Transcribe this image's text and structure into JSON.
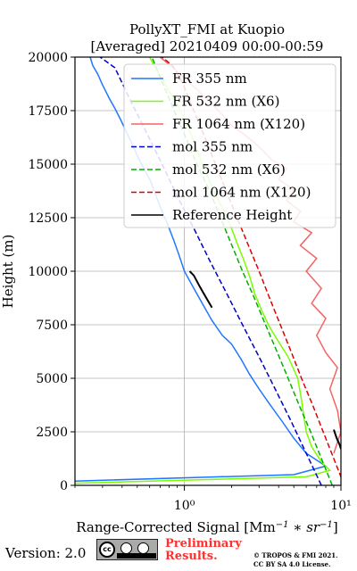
{
  "chart_data": {
    "type": "line",
    "title_line1": "PollyXT_FMI at Kuopio",
    "title_line2": "[Averaged] 20210409 00:00-00:59",
    "xlabel": "Range-Corrected Signal [Mm",
    "xlabel_full": "Range-Corrected Signal [Mm^-1 * sr^-1]",
    "ylabel": "Height (m)",
    "x_scale": "log",
    "xlim": [
      0.2,
      10
    ],
    "ylim": [
      0,
      20000
    ],
    "x_ticks": [
      1,
      10
    ],
    "x_tick_labels": [
      "10⁰",
      "10¹"
    ],
    "y_ticks": [
      0,
      2500,
      5000,
      7500,
      10000,
      12500,
      15000,
      17500,
      20000
    ],
    "y_tick_labels": [
      "0",
      "2500",
      "5000",
      "7500",
      "10000",
      "12500",
      "15000",
      "17500",
      "20000"
    ],
    "grid": true,
    "legend_placement": "top-right",
    "colors": {
      "fr355": "#1f77ff",
      "fr532": "#7cfc00",
      "fr1064": "#f56464",
      "mol355": "#0000cc",
      "mol532": "#00b000",
      "mol1064": "#dd0000",
      "ref": "#000000"
    },
    "series": [
      {
        "key": "fr355",
        "name": "FR 355 nm",
        "style": "solid",
        "x": [
          0.2,
          5.0,
          8.0,
          6.0,
          5.0,
          4.2,
          3.5,
          3.0,
          2.6,
          2.3,
          2.0,
          1.75,
          1.5,
          1.3,
          1.15,
          1.0,
          0.92,
          0.85,
          0.78,
          0.72,
          0.66,
          0.61,
          0.55,
          0.5,
          0.46,
          0.42,
          0.39,
          0.36,
          0.33,
          0.3,
          0.28,
          0.26,
          0.25
        ],
        "y": [
          200,
          500,
          900,
          1500,
          2200,
          3000,
          3800,
          4500,
          5200,
          5900,
          6600,
          7000,
          7700,
          8500,
          9200,
          10000,
          10800,
          11500,
          12200,
          12800,
          13500,
          14200,
          14800,
          15400,
          16000,
          16600,
          17100,
          17600,
          18100,
          18700,
          19200,
          19600,
          20000
        ]
      },
      {
        "key": "fr532",
        "name": "FR 532 nm (X6)",
        "style": "solid",
        "x": [
          0.2,
          6.0,
          8.5,
          7.5,
          6.5,
          6.0,
          5.8,
          5.6,
          5.3,
          4.6,
          4.0,
          3.5,
          3.1,
          2.8,
          2.6,
          2.4,
          2.2,
          2.0,
          1.8,
          1.6,
          1.45,
          1.3,
          1.2,
          1.1,
          1.0,
          0.9,
          0.8,
          0.72,
          0.65,
          0.6
        ],
        "y": [
          100,
          400,
          700,
          1100,
          1800,
          2500,
          3200,
          4000,
          5000,
          6000,
          6700,
          7400,
          8200,
          9000,
          9800,
          10500,
          11200,
          12000,
          12800,
          13500,
          14200,
          15000,
          15700,
          16400,
          17100,
          17800,
          18400,
          19000,
          19500,
          20000
        ]
      },
      {
        "key": "fr1064",
        "name": "FR 1064 nm (X120)",
        "style": "solid",
        "x": [
          9.0,
          10.0,
          9.5,
          8.5,
          9.5,
          8.0,
          7.0,
          8.0,
          6.5,
          7.5,
          6.0,
          7.0,
          5.5,
          6.5,
          5.0,
          5.5,
          4.5,
          5.0,
          4.0,
          4.5,
          3.6,
          3.2,
          2.8,
          2.4,
          2.0,
          1.8,
          1.6,
          1.4,
          1.2,
          1.0,
          0.85,
          0.7
        ],
        "y": [
          1500,
          2500,
          3500,
          4500,
          5500,
          6200,
          7000,
          7800,
          8500,
          9200,
          10000,
          10600,
          11200,
          11800,
          12300,
          12800,
          13300,
          13800,
          14300,
          14800,
          15200,
          15600,
          16000,
          16400,
          16800,
          17200,
          17600,
          18000,
          18500,
          19000,
          19500,
          20000
        ]
      },
      {
        "key": "mol355",
        "name": "mol 355 nm",
        "style": "dashed",
        "x": [
          7.5,
          6.0,
          4.8,
          3.8,
          3.0,
          2.35,
          1.85,
          1.45,
          1.15,
          0.9,
          0.72,
          0.57,
          0.45,
          0.36,
          0.29
        ],
        "y": [
          0,
          1500,
          3000,
          4500,
          6000,
          7500,
          9000,
          10500,
          12000,
          13500,
          15000,
          16500,
          18000,
          19500,
          20000
        ]
      },
      {
        "key": "mol532",
        "name": "mol 532 nm (X6)",
        "style": "dashed",
        "x": [
          8.8,
          7.5,
          6.4,
          5.4,
          4.6,
          3.9,
          3.3,
          2.8,
          2.35,
          2.0,
          1.7,
          1.45,
          1.2,
          1.02,
          0.86,
          0.73,
          0.62
        ],
        "y": [
          0,
          1250,
          2500,
          3750,
          5000,
          6250,
          7500,
          8750,
          10000,
          11250,
          12500,
          13750,
          15000,
          16250,
          17500,
          18750,
          20000
        ]
      },
      {
        "key": "mol1064",
        "name": "mol 1064 nm (X120)",
        "style": "dashed",
        "x": [
          10.5,
          9.0,
          7.7,
          6.6,
          5.6,
          4.8,
          4.1,
          3.5,
          3.0,
          2.55,
          2.17,
          1.85,
          1.58,
          1.35,
          1.15,
          0.98,
          0.84,
          0.72
        ],
        "y": [
          0,
          1250,
          2500,
          3750,
          5000,
          6250,
          7500,
          8750,
          10000,
          11250,
          12500,
          13750,
          15000,
          16250,
          17500,
          18750,
          19600,
          20000
        ]
      },
      {
        "key": "ref",
        "name": "Reference Height",
        "style": "solid",
        "segments": [
          {
            "x": [
              1.08,
              1.15,
              1.25,
              1.32,
              1.42,
              1.5
            ],
            "y": [
              10000,
              9800,
              9300,
              9000,
              8600,
              8300
            ]
          },
          {
            "x": [
              9.0,
              9.4,
              9.8,
              10.0
            ],
            "y": [
              2600,
              2200,
              1900,
              1700
            ]
          }
        ]
      }
    ]
  },
  "footer": {
    "version": "Version: 2.0",
    "cc_label": "cc",
    "preliminary_line1": "Preliminary",
    "preliminary_line2": "Results.",
    "copyright_line1": "© TROPOS & FMI 2021.",
    "copyright_line2": "CC BY SA 4.0 License."
  }
}
